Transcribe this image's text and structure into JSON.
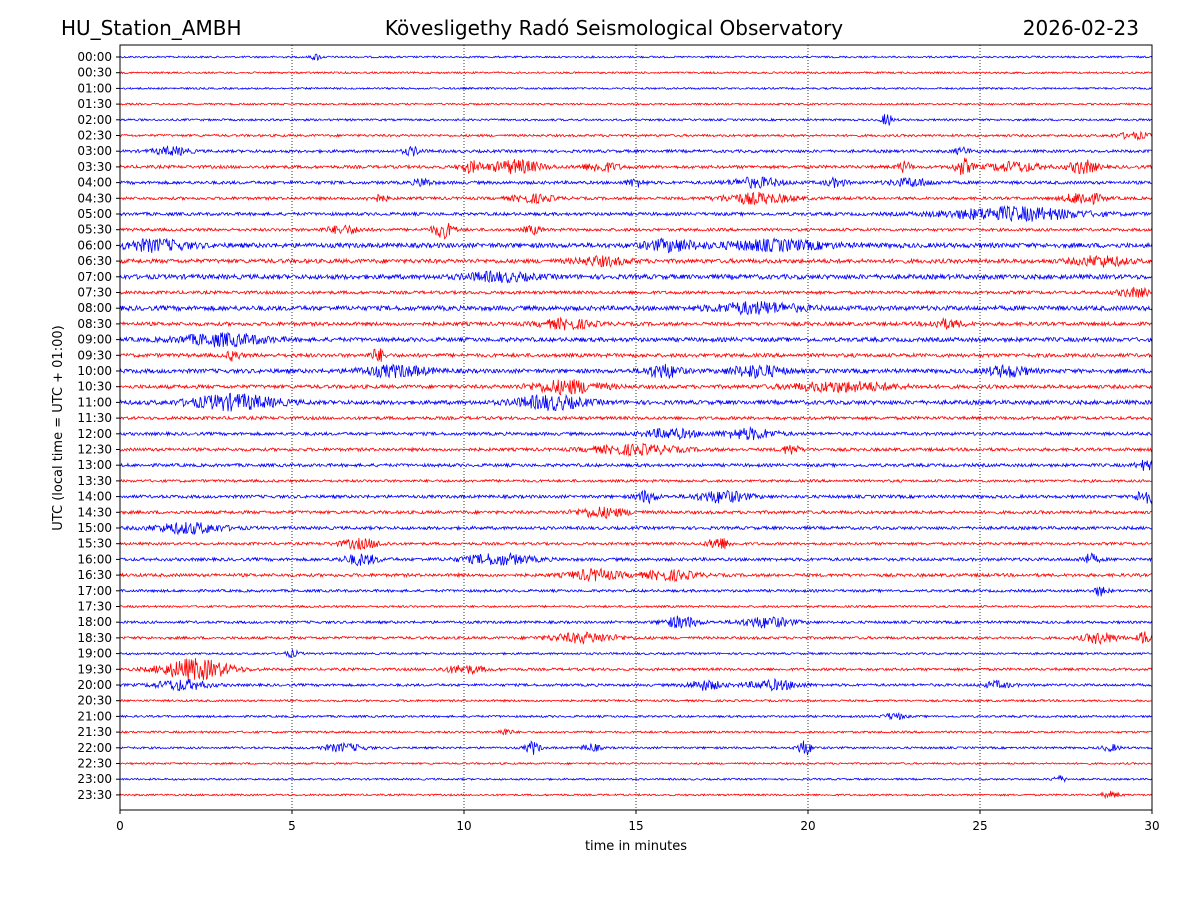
{
  "header": {
    "station": "HU_Station_AMBH",
    "observatory": "Kövesligethy Radó Seismological Observatory",
    "date": "2026-02-23"
  },
  "chart_data": {
    "type": "line",
    "title": "Kövesligethy Radó Seismological Observatory",
    "xlabel": "time in minutes",
    "ylabel": "UTC (local time = UTC + 01:00)",
    "xlim": [
      0,
      30
    ],
    "xticks": [
      "0",
      "5",
      "10",
      "15",
      "20",
      "25",
      "30"
    ],
    "grid": "vertical dotted at 5-minute ticks",
    "colors": {
      "even_rows": "#0000ff",
      "odd_rows": "#ff0000"
    },
    "rows": [
      "00:00",
      "00:30",
      "01:00",
      "01:30",
      "02:00",
      "02:30",
      "03:00",
      "03:30",
      "04:00",
      "04:30",
      "05:00",
      "05:30",
      "06:00",
      "06:30",
      "07:00",
      "07:30",
      "08:00",
      "08:30",
      "09:00",
      "09:30",
      "10:00",
      "10:30",
      "11:00",
      "11:30",
      "12:00",
      "12:30",
      "13:00",
      "13:30",
      "14:00",
      "14:30",
      "15:00",
      "15:30",
      "16:00",
      "16:30",
      "17:00",
      "17:30",
      "18:00",
      "18:30",
      "19:00",
      "19:30",
      "20:00",
      "20:30",
      "21:00",
      "21:30",
      "22:00",
      "22:30",
      "23:00",
      "23:30"
    ],
    "series_note": "each row is a 30-minute seismogram trace; x in minutes",
    "row_noise": [
      0.35,
      0.35,
      0.35,
      0.35,
      0.4,
      0.45,
      0.55,
      0.6,
      0.6,
      0.55,
      0.6,
      0.55,
      0.9,
      0.8,
      0.9,
      0.6,
      0.9,
      0.7,
      0.8,
      0.7,
      0.8,
      0.7,
      0.8,
      0.6,
      0.6,
      0.6,
      0.6,
      0.5,
      0.6,
      0.6,
      0.6,
      0.5,
      0.6,
      0.6,
      0.5,
      0.4,
      0.5,
      0.5,
      0.4,
      0.5,
      0.5,
      0.4,
      0.4,
      0.4,
      0.4,
      0.35,
      0.35,
      0.35
    ],
    "events": [
      {
        "row": "00:00",
        "t": 5.7,
        "amp": 1.2,
        "dur": 0.3
      },
      {
        "row": "02:00",
        "t": 22.3,
        "amp": 2.5,
        "dur": 0.3
      },
      {
        "row": "02:30",
        "t": 29.5,
        "amp": 1.2,
        "dur": 1.0
      },
      {
        "row": "03:00",
        "t": 1.5,
        "amp": 1.5,
        "dur": 1.0
      },
      {
        "row": "03:00",
        "t": 8.5,
        "amp": 1.5,
        "dur": 0.5
      },
      {
        "row": "03:00",
        "t": 24.5,
        "amp": 1.2,
        "dur": 0.5
      },
      {
        "row": "03:30",
        "t": 10.2,
        "amp": 2.0,
        "dur": 0.6
      },
      {
        "row": "03:30",
        "t": 11.5,
        "amp": 2.5,
        "dur": 1.5
      },
      {
        "row": "03:30",
        "t": 14.0,
        "amp": 1.8,
        "dur": 1.0
      },
      {
        "row": "03:30",
        "t": 22.8,
        "amp": 2.0,
        "dur": 0.4
      },
      {
        "row": "03:30",
        "t": 24.5,
        "amp": 3.0,
        "dur": 0.5
      },
      {
        "row": "03:30",
        "t": 26.0,
        "amp": 1.8,
        "dur": 1.5
      },
      {
        "row": "03:30",
        "t": 28.0,
        "amp": 2.5,
        "dur": 0.8
      },
      {
        "row": "04:00",
        "t": 8.8,
        "amp": 1.5,
        "dur": 0.5
      },
      {
        "row": "04:00",
        "t": 15.0,
        "amp": 1.5,
        "dur": 0.5
      },
      {
        "row": "04:00",
        "t": 18.5,
        "amp": 1.8,
        "dur": 1.5
      },
      {
        "row": "04:00",
        "t": 20.8,
        "amp": 1.5,
        "dur": 0.6
      },
      {
        "row": "04:00",
        "t": 23.0,
        "amp": 1.5,
        "dur": 1.2
      },
      {
        "row": "04:30",
        "t": 7.5,
        "amp": 1.2,
        "dur": 0.6
      },
      {
        "row": "04:30",
        "t": 12.0,
        "amp": 1.5,
        "dur": 1.2
      },
      {
        "row": "04:30",
        "t": 18.5,
        "amp": 2.0,
        "dur": 2.0
      },
      {
        "row": "04:30",
        "t": 28.0,
        "amp": 2.5,
        "dur": 1.0
      },
      {
        "row": "05:00",
        "t": 26.0,
        "amp": 2.5,
        "dur": 4.0
      },
      {
        "row": "05:30",
        "t": 9.4,
        "amp": 3.0,
        "dur": 0.6
      },
      {
        "row": "05:30",
        "t": 6.5,
        "amp": 1.5,
        "dur": 1.0
      },
      {
        "row": "05:30",
        "t": 12.0,
        "amp": 1.5,
        "dur": 0.5
      },
      {
        "row": "06:00",
        "t": 1.0,
        "amp": 2.0,
        "dur": 2.0
      },
      {
        "row": "06:00",
        "t": 16.0,
        "amp": 2.0,
        "dur": 1.5
      },
      {
        "row": "06:00",
        "t": 19.0,
        "amp": 1.8,
        "dur": 3.0
      },
      {
        "row": "06:30",
        "t": 14.0,
        "amp": 1.5,
        "dur": 1.5
      },
      {
        "row": "06:30",
        "t": 28.5,
        "amp": 1.8,
        "dur": 1.5
      },
      {
        "row": "07:00",
        "t": 11.0,
        "amp": 1.5,
        "dur": 2.0
      },
      {
        "row": "07:30",
        "t": 29.5,
        "amp": 1.5,
        "dur": 1.0
      },
      {
        "row": "08:00",
        "t": 18.5,
        "amp": 2.0,
        "dur": 2.5
      },
      {
        "row": "08:30",
        "t": 13.0,
        "amp": 1.8,
        "dur": 1.5
      },
      {
        "row": "08:30",
        "t": 24.0,
        "amp": 1.5,
        "dur": 1.0
      },
      {
        "row": "09:00",
        "t": 3.0,
        "amp": 2.2,
        "dur": 2.5
      },
      {
        "row": "09:30",
        "t": 3.3,
        "amp": 1.8,
        "dur": 0.4
      },
      {
        "row": "09:30",
        "t": 7.5,
        "amp": 2.5,
        "dur": 0.4
      },
      {
        "row": "10:00",
        "t": 8.0,
        "amp": 2.0,
        "dur": 2.0
      },
      {
        "row": "10:00",
        "t": 15.8,
        "amp": 2.5,
        "dur": 1.0
      },
      {
        "row": "10:00",
        "t": 18.5,
        "amp": 2.2,
        "dur": 1.5
      },
      {
        "row": "10:00",
        "t": 25.8,
        "amp": 2.0,
        "dur": 1.2
      },
      {
        "row": "10:30",
        "t": 13.0,
        "amp": 2.5,
        "dur": 2.0
      },
      {
        "row": "10:30",
        "t": 21.0,
        "amp": 1.8,
        "dur": 3.0
      },
      {
        "row": "11:00",
        "t": 3.3,
        "amp": 2.8,
        "dur": 2.5
      },
      {
        "row": "11:00",
        "t": 12.5,
        "amp": 2.5,
        "dur": 2.0
      },
      {
        "row": "12:00",
        "t": 16.0,
        "amp": 1.8,
        "dur": 1.5
      },
      {
        "row": "12:00",
        "t": 18.3,
        "amp": 2.0,
        "dur": 1.5
      },
      {
        "row": "12:30",
        "t": 15.0,
        "amp": 1.8,
        "dur": 2.5
      },
      {
        "row": "12:30",
        "t": 19.5,
        "amp": 1.8,
        "dur": 0.5
      },
      {
        "row": "13:00",
        "t": 29.8,
        "amp": 1.8,
        "dur": 0.5
      },
      {
        "row": "14:00",
        "t": 15.3,
        "amp": 2.2,
        "dur": 0.6
      },
      {
        "row": "14:00",
        "t": 17.5,
        "amp": 2.2,
        "dur": 1.5
      },
      {
        "row": "14:00",
        "t": 29.8,
        "amp": 3.0,
        "dur": 0.5
      },
      {
        "row": "14:30",
        "t": 14.0,
        "amp": 1.8,
        "dur": 1.5
      },
      {
        "row": "15:00",
        "t": 2.0,
        "amp": 2.0,
        "dur": 2.0
      },
      {
        "row": "15:30",
        "t": 7.0,
        "amp": 1.8,
        "dur": 1.2
      },
      {
        "row": "15:30",
        "t": 17.4,
        "amp": 2.5,
        "dur": 0.6
      },
      {
        "row": "16:00",
        "t": 7.0,
        "amp": 2.0,
        "dur": 1.0
      },
      {
        "row": "16:00",
        "t": 11.0,
        "amp": 2.0,
        "dur": 2.0
      },
      {
        "row": "16:00",
        "t": 28.2,
        "amp": 1.8,
        "dur": 0.5
      },
      {
        "row": "16:30",
        "t": 13.8,
        "amp": 2.0,
        "dur": 1.5
      },
      {
        "row": "16:30",
        "t": 16.0,
        "amp": 1.8,
        "dur": 1.5
      },
      {
        "row": "17:00",
        "t": 28.5,
        "amp": 1.8,
        "dur": 0.4
      },
      {
        "row": "18:00",
        "t": 16.3,
        "amp": 2.2,
        "dur": 1.0
      },
      {
        "row": "18:00",
        "t": 18.8,
        "amp": 2.0,
        "dur": 1.5
      },
      {
        "row": "18:30",
        "t": 13.5,
        "amp": 1.8,
        "dur": 2.0
      },
      {
        "row": "18:30",
        "t": 28.5,
        "amp": 2.0,
        "dur": 1.0
      },
      {
        "row": "18:30",
        "t": 29.8,
        "amp": 2.5,
        "dur": 0.4
      },
      {
        "row": "19:00",
        "t": 5.0,
        "amp": 1.2,
        "dur": 0.4
      },
      {
        "row": "19:30",
        "t": 2.2,
        "amp": 4.0,
        "dur": 2.0
      },
      {
        "row": "19:30",
        "t": 10.0,
        "amp": 1.5,
        "dur": 1.2
      },
      {
        "row": "20:00",
        "t": 1.8,
        "amp": 2.0,
        "dur": 1.5
      },
      {
        "row": "20:00",
        "t": 17.0,
        "amp": 1.8,
        "dur": 1.0
      },
      {
        "row": "20:00",
        "t": 19.0,
        "amp": 1.8,
        "dur": 1.5
      },
      {
        "row": "20:00",
        "t": 25.5,
        "amp": 1.2,
        "dur": 0.8
      },
      {
        "row": "21:00",
        "t": 22.5,
        "amp": 1.2,
        "dur": 0.6
      },
      {
        "row": "21:30",
        "t": 11.2,
        "amp": 1.2,
        "dur": 0.4
      },
      {
        "row": "22:00",
        "t": 6.5,
        "amp": 1.5,
        "dur": 1.2
      },
      {
        "row": "22:00",
        "t": 12.0,
        "amp": 2.5,
        "dur": 0.4
      },
      {
        "row": "22:00",
        "t": 13.7,
        "amp": 1.5,
        "dur": 0.5
      },
      {
        "row": "22:00",
        "t": 19.9,
        "amp": 3.0,
        "dur": 0.4
      },
      {
        "row": "22:00",
        "t": 28.8,
        "amp": 1.2,
        "dur": 0.5
      },
      {
        "row": "23:00",
        "t": 27.3,
        "amp": 1.2,
        "dur": 0.4
      },
      {
        "row": "23:30",
        "t": 28.8,
        "amp": 1.2,
        "dur": 0.5
      }
    ]
  }
}
